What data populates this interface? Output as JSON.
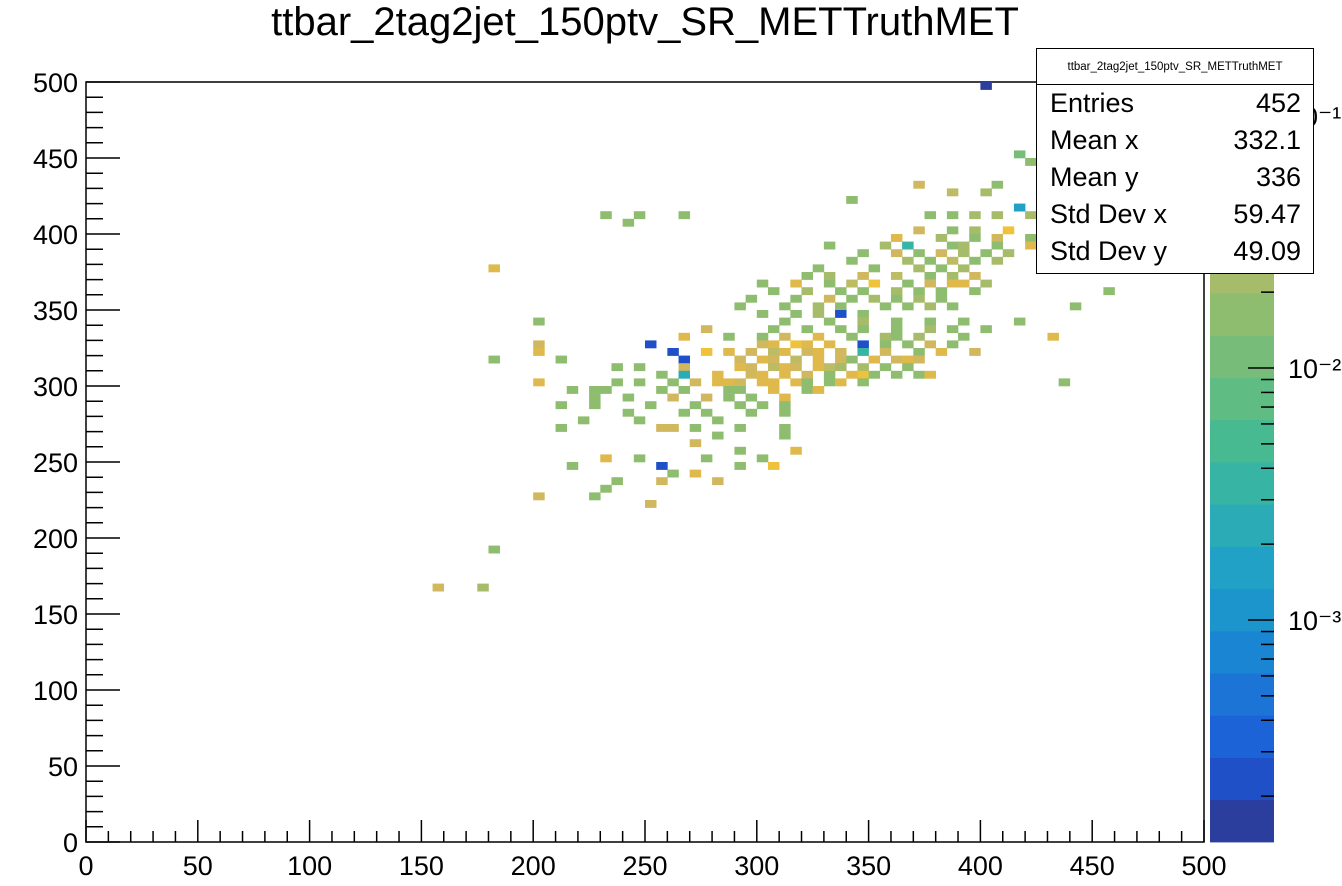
{
  "title": "ttbar_2tag2jet_150ptv_SR_METTruthMET",
  "stats": {
    "title": "ttbar_2tag2jet_150ptv_SR_METTruthMET",
    "rows": [
      {
        "label": "Entries",
        "value": "452"
      },
      {
        "label": "Mean x",
        "value": "332.1"
      },
      {
        "label": "Mean y",
        "value": "336"
      },
      {
        "label": "Std Dev x",
        "value": "59.47"
      },
      {
        "label": "Std Dev y",
        "value": "49.09"
      }
    ]
  },
  "colorbar": {
    "scale": "log",
    "tick_labels": [
      "10⁻³",
      "10⁻²",
      "10⁻¹"
    ],
    "palette": [
      "#2b3e9e",
      "#1f50c8",
      "#1d63d8",
      "#1b74d6",
      "#1a85d3",
      "#1c94cc",
      "#21a1c6",
      "#2aabb6",
      "#37b4a4",
      "#48ba92",
      "#5fbd83",
      "#77bd79",
      "#8fbd70",
      "#a6bc6a",
      "#bdbb64",
      "#d1b85e",
      "#e0b94c",
      "#eec23a"
    ]
  },
  "chart_data": {
    "type": "heatmap",
    "xlim": [
      0,
      500
    ],
    "ylim": [
      0,
      500
    ],
    "x_ticks": [
      0,
      50,
      100,
      150,
      200,
      250,
      300,
      350,
      400,
      450,
      500
    ],
    "y_ticks": [
      0,
      50,
      100,
      150,
      200,
      250,
      300,
      350,
      400,
      450,
      500
    ],
    "bin_width": 5,
    "z_scale": "log",
    "cells": [
      [
        400,
        495,
        0
      ],
      [
        415,
        450,
        11
      ],
      [
        435,
        445,
        17
      ],
      [
        425,
        440,
        15
      ],
      [
        420,
        445,
        12
      ],
      [
        405,
        430,
        12
      ],
      [
        370,
        430,
        15
      ],
      [
        385,
        425,
        14
      ],
      [
        400,
        425,
        13
      ],
      [
        425,
        425,
        11
      ],
      [
        430,
        425,
        15
      ],
      [
        340,
        420,
        12
      ],
      [
        415,
        415,
        6
      ],
      [
        430,
        415,
        11
      ],
      [
        230,
        410,
        12
      ],
      [
        245,
        410,
        12
      ],
      [
        265,
        410,
        12
      ],
      [
        375,
        410,
        12
      ],
      [
        385,
        410,
        12
      ],
      [
        395,
        410,
        13
      ],
      [
        405,
        410,
        13
      ],
      [
        420,
        410,
        13
      ],
      [
        240,
        405,
        12
      ],
      [
        370,
        400,
        15
      ],
      [
        385,
        400,
        12
      ],
      [
        395,
        400,
        13
      ],
      [
        410,
        400,
        17
      ],
      [
        425,
        400,
        15
      ],
      [
        360,
        395,
        16
      ],
      [
        380,
        395,
        13
      ],
      [
        395,
        395,
        12
      ],
      [
        405,
        395,
        15
      ],
      [
        420,
        395,
        12
      ],
      [
        330,
        390,
        12
      ],
      [
        355,
        390,
        13
      ],
      [
        365,
        390,
        8
      ],
      [
        385,
        390,
        12
      ],
      [
        390,
        390,
        13
      ],
      [
        405,
        390,
        12
      ],
      [
        420,
        390,
        16
      ],
      [
        345,
        385,
        12
      ],
      [
        360,
        385,
        15
      ],
      [
        370,
        385,
        12
      ],
      [
        380,
        385,
        15
      ],
      [
        390,
        385,
        13
      ],
      [
        400,
        385,
        12
      ],
      [
        410,
        385,
        13
      ],
      [
        425,
        385,
        16
      ],
      [
        340,
        380,
        12
      ],
      [
        365,
        380,
        13
      ],
      [
        375,
        380,
        12
      ],
      [
        385,
        380,
        14
      ],
      [
        395,
        380,
        12
      ],
      [
        405,
        380,
        13
      ],
      [
        180,
        375,
        16
      ],
      [
        325,
        375,
        12
      ],
      [
        350,
        375,
        12
      ],
      [
        370,
        375,
        13
      ],
      [
        380,
        375,
        12
      ],
      [
        390,
        375,
        13
      ],
      [
        320,
        370,
        12
      ],
      [
        330,
        370,
        13
      ],
      [
        345,
        370,
        15
      ],
      [
        360,
        370,
        14
      ],
      [
        375,
        370,
        12
      ],
      [
        385,
        370,
        13
      ],
      [
        395,
        370,
        15
      ],
      [
        300,
        365,
        12
      ],
      [
        315,
        365,
        16
      ],
      [
        330,
        365,
        12
      ],
      [
        340,
        365,
        14
      ],
      [
        350,
        365,
        17
      ],
      [
        365,
        365,
        12
      ],
      [
        375,
        365,
        15
      ],
      [
        385,
        365,
        16
      ],
      [
        390,
        365,
        16
      ],
      [
        400,
        365,
        13
      ],
      [
        305,
        360,
        12
      ],
      [
        320,
        360,
        13
      ],
      [
        335,
        360,
        12
      ],
      [
        345,
        360,
        12
      ],
      [
        360,
        360,
        13
      ],
      [
        370,
        360,
        12
      ],
      [
        380,
        360,
        12
      ],
      [
        395,
        360,
        12
      ],
      [
        455,
        360,
        12
      ],
      [
        295,
        355,
        12
      ],
      [
        315,
        355,
        12
      ],
      [
        330,
        355,
        15
      ],
      [
        340,
        355,
        12
      ],
      [
        350,
        355,
        13
      ],
      [
        360,
        355,
        12
      ],
      [
        370,
        355,
        13
      ],
      [
        380,
        355,
        12
      ],
      [
        290,
        350,
        12
      ],
      [
        310,
        350,
        12
      ],
      [
        325,
        350,
        13
      ],
      [
        335,
        350,
        12
      ],
      [
        355,
        350,
        12
      ],
      [
        365,
        350,
        12
      ],
      [
        375,
        350,
        13
      ],
      [
        385,
        350,
        12
      ],
      [
        440,
        350,
        12
      ],
      [
        335,
        345,
        1
      ],
      [
        345,
        345,
        12
      ],
      [
        300,
        345,
        12
      ],
      [
        315,
        345,
        12
      ],
      [
        325,
        345,
        13
      ],
      [
        200,
        340,
        12
      ],
      [
        310,
        340,
        12
      ],
      [
        330,
        340,
        12
      ],
      [
        345,
        340,
        13
      ],
      [
        360,
        340,
        12
      ],
      [
        375,
        340,
        12
      ],
      [
        390,
        340,
        12
      ],
      [
        415,
        340,
        12
      ],
      [
        275,
        335,
        15
      ],
      [
        305,
        335,
        12
      ],
      [
        320,
        335,
        12
      ],
      [
        335,
        335,
        12
      ],
      [
        345,
        335,
        12
      ],
      [
        360,
        335,
        12
      ],
      [
        375,
        335,
        13
      ],
      [
        385,
        335,
        12
      ],
      [
        400,
        335,
        12
      ],
      [
        265,
        330,
        16
      ],
      [
        285,
        330,
        12
      ],
      [
        300,
        330,
        12
      ],
      [
        310,
        330,
        15
      ],
      [
        325,
        330,
        16
      ],
      [
        340,
        330,
        12
      ],
      [
        355,
        330,
        13
      ],
      [
        360,
        330,
        12
      ],
      [
        370,
        330,
        13
      ],
      [
        390,
        330,
        12
      ],
      [
        430,
        330,
        16
      ],
      [
        200,
        325,
        15
      ],
      [
        250,
        325,
        1
      ],
      [
        300,
        325,
        15
      ],
      [
        305,
        325,
        16
      ],
      [
        315,
        325,
        17
      ],
      [
        320,
        325,
        16
      ],
      [
        330,
        325,
        16
      ],
      [
        345,
        325,
        1
      ],
      [
        355,
        325,
        12
      ],
      [
        365,
        325,
        12
      ],
      [
        375,
        325,
        15
      ],
      [
        385,
        325,
        12
      ],
      [
        200,
        320,
        16
      ],
      [
        260,
        320,
        1
      ],
      [
        275,
        320,
        17
      ],
      [
        285,
        320,
        16
      ],
      [
        295,
        320,
        15
      ],
      [
        305,
        320,
        14
      ],
      [
        310,
        320,
        16
      ],
      [
        320,
        320,
        15
      ],
      [
        325,
        320,
        16
      ],
      [
        335,
        320,
        15
      ],
      [
        345,
        320,
        8
      ],
      [
        355,
        320,
        15
      ],
      [
        370,
        320,
        12
      ],
      [
        380,
        320,
        16
      ],
      [
        395,
        320,
        15
      ],
      [
        180,
        315,
        12
      ],
      [
        210,
        315,
        12
      ],
      [
        265,
        315,
        1
      ],
      [
        290,
        315,
        15
      ],
      [
        300,
        315,
        16
      ],
      [
        305,
        315,
        15
      ],
      [
        315,
        315,
        14
      ],
      [
        325,
        315,
        16
      ],
      [
        335,
        315,
        15
      ],
      [
        340,
        315,
        12
      ],
      [
        350,
        315,
        16
      ],
      [
        360,
        315,
        15
      ],
      [
        365,
        315,
        16
      ],
      [
        370,
        315,
        15
      ],
      [
        235,
        310,
        12
      ],
      [
        245,
        310,
        12
      ],
      [
        265,
        310,
        15
      ],
      [
        290,
        310,
        16
      ],
      [
        295,
        310,
        15
      ],
      [
        305,
        310,
        14
      ],
      [
        310,
        310,
        16
      ],
      [
        315,
        310,
        15
      ],
      [
        325,
        310,
        16
      ],
      [
        330,
        310,
        14
      ],
      [
        335,
        310,
        13
      ],
      [
        345,
        310,
        13
      ],
      [
        355,
        310,
        12
      ],
      [
        365,
        310,
        12
      ],
      [
        255,
        305,
        12
      ],
      [
        265,
        305,
        7
      ],
      [
        280,
        305,
        16
      ],
      [
        295,
        305,
        15
      ],
      [
        300,
        305,
        16
      ],
      [
        310,
        305,
        16
      ],
      [
        320,
        305,
        15
      ],
      [
        330,
        305,
        12
      ],
      [
        340,
        305,
        16
      ],
      [
        345,
        305,
        17
      ],
      [
        350,
        305,
        12
      ],
      [
        360,
        305,
        12
      ],
      [
        370,
        305,
        12
      ],
      [
        375,
        305,
        16
      ],
      [
        200,
        300,
        16
      ],
      [
        235,
        300,
        12
      ],
      [
        245,
        300,
        12
      ],
      [
        260,
        300,
        12
      ],
      [
        270,
        300,
        15
      ],
      [
        280,
        300,
        16
      ],
      [
        285,
        300,
        16
      ],
      [
        290,
        300,
        15
      ],
      [
        300,
        300,
        16
      ],
      [
        305,
        300,
        16
      ],
      [
        315,
        300,
        16
      ],
      [
        320,
        300,
        12
      ],
      [
        330,
        300,
        12
      ],
      [
        335,
        300,
        16
      ],
      [
        345,
        300,
        12
      ],
      [
        435,
        300,
        12
      ],
      [
        215,
        295,
        12
      ],
      [
        225,
        295,
        12
      ],
      [
        230,
        295,
        12
      ],
      [
        255,
        295,
        12
      ],
      [
        265,
        295,
        12
      ],
      [
        285,
        295,
        12
      ],
      [
        290,
        295,
        12
      ],
      [
        305,
        295,
        16
      ],
      [
        320,
        295,
        12
      ],
      [
        325,
        295,
        16
      ],
      [
        225,
        290,
        12
      ],
      [
        240,
        290,
        12
      ],
      [
        260,
        290,
        15
      ],
      [
        275,
        290,
        15
      ],
      [
        285,
        290,
        12
      ],
      [
        295,
        290,
        12
      ],
      [
        310,
        290,
        16
      ],
      [
        210,
        285,
        12
      ],
      [
        225,
        285,
        12
      ],
      [
        250,
        285,
        12
      ],
      [
        270,
        285,
        12
      ],
      [
        290,
        285,
        12
      ],
      [
        300,
        285,
        12
      ],
      [
        310,
        285,
        12
      ],
      [
        240,
        280,
        12
      ],
      [
        265,
        280,
        12
      ],
      [
        275,
        280,
        12
      ],
      [
        295,
        280,
        12
      ],
      [
        310,
        280,
        12
      ],
      [
        220,
        275,
        12
      ],
      [
        245,
        275,
        12
      ],
      [
        280,
        275,
        12
      ],
      [
        210,
        270,
        12
      ],
      [
        255,
        270,
        15
      ],
      [
        260,
        270,
        15
      ],
      [
        270,
        270,
        12
      ],
      [
        290,
        270,
        12
      ],
      [
        310,
        270,
        12
      ],
      [
        280,
        265,
        12
      ],
      [
        310,
        265,
        12
      ],
      [
        270,
        260,
        15
      ],
      [
        290,
        255,
        12
      ],
      [
        315,
        255,
        16
      ],
      [
        245,
        250,
        12
      ],
      [
        230,
        250,
        16
      ],
      [
        275,
        250,
        12
      ],
      [
        300,
        250,
        12
      ],
      [
        215,
        245,
        12
      ],
      [
        255,
        245,
        1
      ],
      [
        290,
        245,
        12
      ],
      [
        305,
        245,
        17
      ],
      [
        260,
        240,
        12
      ],
      [
        270,
        240,
        16
      ],
      [
        235,
        235,
        12
      ],
      [
        255,
        235,
        15
      ],
      [
        280,
        235,
        15
      ],
      [
        230,
        230,
        12
      ],
      [
        225,
        225,
        12
      ],
      [
        200,
        225,
        15
      ],
      [
        250,
        220,
        15
      ],
      [
        180,
        190,
        12
      ],
      [
        155,
        165,
        15
      ],
      [
        175,
        165,
        13
      ]
    ]
  }
}
